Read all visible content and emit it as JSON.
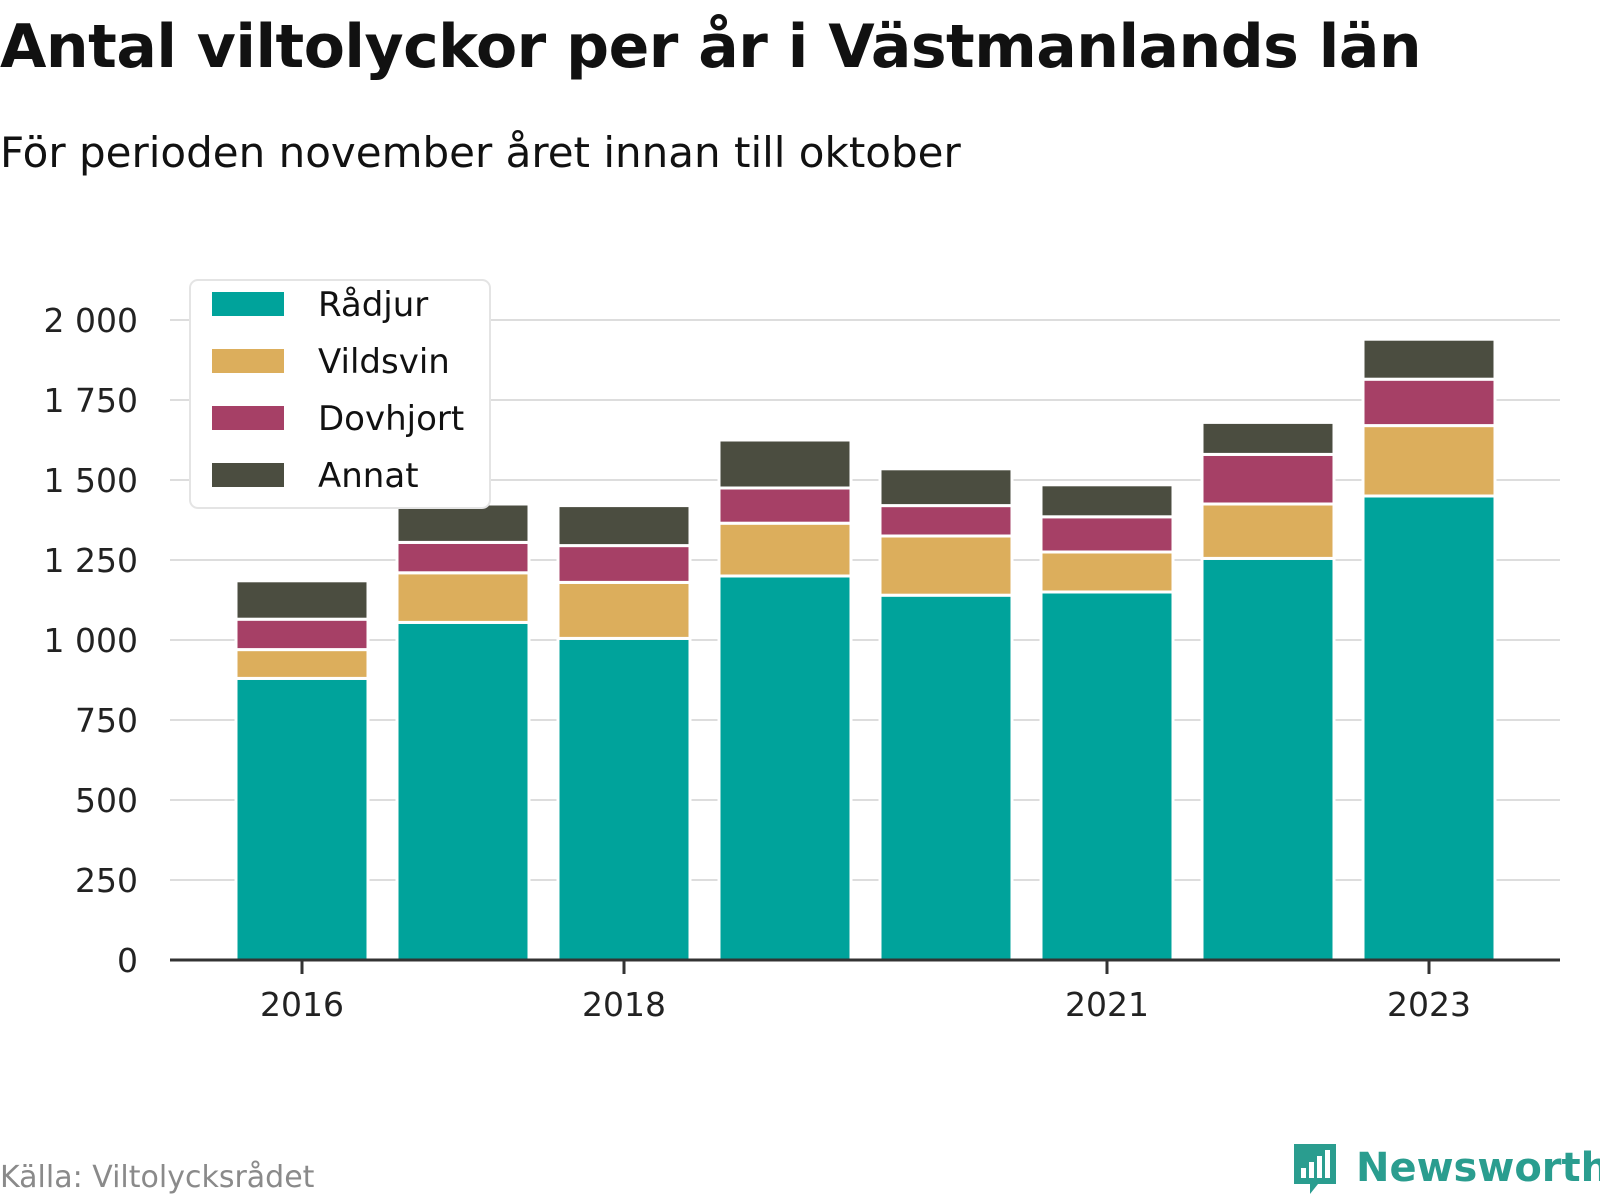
{
  "chart_data": {
    "type": "bar",
    "stacked": true,
    "title": "Antal viltolyckor per år i Västmanlands län",
    "subtitle": "För perioden november året innan till oktober",
    "categories": [
      "2016",
      "2017",
      "2018",
      "2019",
      "2020",
      "2021",
      "2022",
      "2023"
    ],
    "x_tick_labels": [
      "2016",
      "2018",
      "2021",
      "2023"
    ],
    "series": [
      {
        "name": "Rådjur",
        "color": "#00a39b",
        "values": [
          880,
          1055,
          1005,
          1200,
          1140,
          1150,
          1255,
          1450
        ]
      },
      {
        "name": "Vildsvin",
        "color": "#dcae5c",
        "values": [
          90,
          155,
          175,
          165,
          185,
          125,
          170,
          220
        ]
      },
      {
        "name": "Dovhjort",
        "color": "#a64066",
        "values": [
          95,
          95,
          115,
          110,
          95,
          110,
          155,
          145
        ]
      },
      {
        "name": "Annat",
        "color": "#4b4d40",
        "values": [
          120,
          120,
          125,
          150,
          115,
          100,
          100,
          125
        ]
      }
    ],
    "y_ticks": [
      0,
      250,
      500,
      750,
      1000,
      1250,
      1500,
      1750,
      2000
    ],
    "y_tick_labels": [
      "0",
      "250",
      "500",
      "750",
      "1 000",
      "1 250",
      "1 500",
      "1 750",
      "2 000"
    ],
    "ylim": [
      0,
      2000
    ],
    "grid": true,
    "legend_position": "top-left",
    "xlabel": "",
    "ylabel": ""
  },
  "source": "Källa: Viltolycksrådet",
  "brand": "Newsworthy",
  "colors": {
    "grid": "#dddddd",
    "axis": "#333333",
    "tick_text": "#222222",
    "brand": "#2a9d8f"
  },
  "icons": {
    "brand_logo": "bar-chart-speech-bubble-icon"
  }
}
